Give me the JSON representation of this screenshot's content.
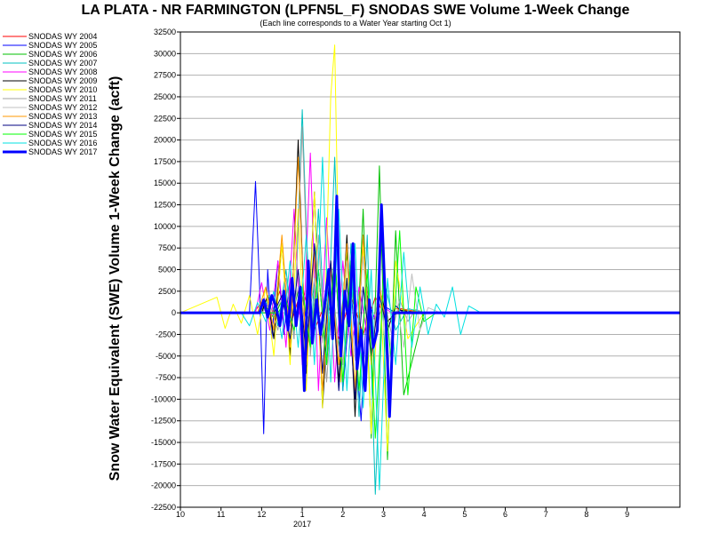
{
  "chart_data": {
    "type": "line",
    "title": "LA PLATA - NR FARMINGTON (LPFN5L_F) SNODAS SWE Volume 1-Week Change",
    "subtitle": "(Each line corresponds to a Water Year starting Oct 1)",
    "ylabel": "Snow Water Equivalent (SWE) Volume 1-Week Change (acft)",
    "xlabel": "",
    "x_year_label": "2017",
    "ylim": [
      -22500,
      32500
    ],
    "y_ticks": [
      32500,
      30000,
      27500,
      25000,
      22500,
      20000,
      17500,
      15000,
      12500,
      10000,
      7500,
      5000,
      2500,
      0,
      -2500,
      -5000,
      -7500,
      -10000,
      -12500,
      -15000,
      -17500,
      -20000,
      -22500
    ],
    "x_ticks": [
      "10",
      "11",
      "12",
      "1",
      "2",
      "3",
      "4",
      "5",
      "6",
      "7",
      "8",
      "9"
    ],
    "x_tick_months": [
      0,
      1,
      2,
      3,
      4,
      5,
      6,
      7,
      8,
      9,
      10,
      11
    ],
    "xlim_months": [
      0,
      12.3
    ],
    "grid": true,
    "legend_placement": "left",
    "series": [
      {
        "name": "SNODAS WY 2004",
        "color": "#ff0000",
        "width": 1,
        "x": [
          0,
          1.8,
          2.0,
          2.2,
          2.45,
          2.7,
          3.0,
          3.3,
          3.6,
          3.9,
          4.2,
          4.5,
          4.8,
          5.1,
          5.4,
          6,
          12.3
        ],
        "y": [
          0,
          0,
          1200,
          -800,
          2500,
          -1500,
          3000,
          -2000,
          1500,
          -3000,
          2000,
          -2500,
          1800,
          -1000,
          500,
          0,
          0
        ]
      },
      {
        "name": "SNODAS WY 2005",
        "color": "#0000ff",
        "width": 1,
        "x": [
          0,
          1.7,
          1.85,
          1.95,
          2.05,
          2.15,
          2.25,
          2.4,
          2.55,
          2.7,
          2.85,
          3.0,
          3.2,
          3.4,
          3.6,
          3.8,
          4.0,
          4.2,
          4.45,
          4.6,
          4.8,
          5.0,
          5.3,
          6,
          12.3
        ],
        "y": [
          0,
          0,
          15200,
          3000,
          -14000,
          5000,
          -3000,
          6000,
          -2500,
          4000,
          -1500,
          2000,
          -4000,
          5000,
          -6000,
          7000,
          -9000,
          3000,
          -12500,
          2000,
          -1000,
          800,
          0,
          0,
          0
        ]
      },
      {
        "name": "SNODAS WY 2006",
        "color": "#00c000",
        "width": 1,
        "x": [
          0,
          1.9,
          2.1,
          2.3,
          2.5,
          2.7,
          2.9,
          3.1,
          3.3,
          3.5,
          3.7,
          3.9,
          4.1,
          4.3,
          4.5,
          4.7,
          4.9,
          5.1,
          5.3,
          5.5,
          6,
          12.3
        ],
        "y": [
          0,
          0,
          800,
          -600,
          1500,
          -1200,
          2500,
          -2000,
          3500,
          -3000,
          5000,
          -4000,
          7000,
          -9000,
          12000,
          -14500,
          17000,
          -17000,
          9500,
          -9500,
          0,
          0
        ]
      },
      {
        "name": "SNODAS WY 2007",
        "color": "#00c0c0",
        "width": 1,
        "x": [
          0,
          2.0,
          2.2,
          2.4,
          2.6,
          2.8,
          3.0,
          3.2,
          3.4,
          3.6,
          3.8,
          4.0,
          4.2,
          4.4,
          4.6,
          4.8,
          5.0,
          5.3,
          5.6,
          6,
          12.3
        ],
        "y": [
          0,
          0,
          2000,
          -1500,
          5000,
          -3000,
          23500,
          -4000,
          12000,
          -6000,
          18000,
          -9000,
          8000,
          -12000,
          9000,
          -21000,
          4000,
          -2000,
          500,
          0,
          0
        ]
      },
      {
        "name": "SNODAS WY 2008",
        "color": "#ff00ff",
        "width": 1,
        "x": [
          0,
          1.85,
          2.0,
          2.2,
          2.4,
          2.6,
          2.8,
          3.0,
          3.2,
          3.4,
          3.6,
          3.8,
          4.0,
          4.2,
          4.4,
          4.6,
          4.9,
          5.2,
          6,
          12.3
        ],
        "y": [
          0,
          0,
          3500,
          -2000,
          6000,
          -4000,
          12000,
          -6000,
          18500,
          -9000,
          11000,
          -8000,
          6000,
          -5000,
          3000,
          -2500,
          1000,
          0,
          0,
          0
        ]
      },
      {
        "name": "SNODAS WY 2009",
        "color": "#000000",
        "width": 1,
        "x": [
          0,
          2.0,
          2.15,
          2.3,
          2.5,
          2.7,
          2.9,
          3.1,
          3.3,
          3.5,
          3.7,
          3.9,
          4.1,
          4.3,
          4.5,
          4.7,
          4.9,
          5.1,
          5.4,
          6,
          12.3
        ],
        "y": [
          0,
          0,
          2000,
          -3000,
          8000,
          -5000,
          20000,
          -7000,
          14000,
          -11000,
          6000,
          -8000,
          9000,
          -12000,
          9000,
          -5000,
          3000,
          -1000,
          300,
          0,
          0
        ]
      },
      {
        "name": "SNODAS WY 2010",
        "color": "#ffff00",
        "width": 1,
        "x": [
          0,
          0.9,
          1.1,
          1.3,
          1.5,
          1.7,
          1.9,
          2.1,
          2.3,
          2.5,
          2.7,
          2.9,
          3.1,
          3.3,
          3.5,
          3.7,
          3.8,
          3.95,
          4.1,
          4.3,
          4.5,
          4.7,
          4.9,
          5.1,
          5.3,
          5.6,
          6,
          12.3
        ],
        "y": [
          0,
          1800,
          -1800,
          1000,
          -1200,
          2000,
          -2500,
          3000,
          -5000,
          8000,
          -6000,
          12000,
          -9000,
          14000,
          -11000,
          25000,
          31000,
          -8000,
          6000,
          -9000,
          8000,
          -14000,
          5000,
          -16000,
          6000,
          -3000,
          0,
          0
        ]
      },
      {
        "name": "SNODAS WY 2011",
        "color": "#a0a0a0",
        "width": 1,
        "x": [
          0,
          2.0,
          2.2,
          2.4,
          2.6,
          2.8,
          3.0,
          3.2,
          3.4,
          3.6,
          3.8,
          4.0,
          4.2,
          4.4,
          4.6,
          4.8,
          5.0,
          5.2,
          5.4,
          5.6,
          5.8,
          6,
          12.3
        ],
        "y": [
          0,
          0,
          1000,
          -2000,
          4000,
          -3000,
          21500,
          -5000,
          9000,
          -8000,
          6000,
          -6000,
          4000,
          -5000,
          3000,
          -3000,
          2000,
          -2500,
          1500,
          -1000,
          400,
          0,
          0
        ]
      },
      {
        "name": "SNODAS WY 2012",
        "color": "#c0c0c0",
        "width": 1,
        "x": [
          0,
          2.3,
          2.5,
          2.7,
          2.9,
          3.1,
          3.3,
          3.5,
          3.7,
          3.9,
          4.1,
          4.3,
          4.5,
          4.7,
          4.9,
          5.1,
          5.3,
          5.5,
          5.7,
          5.9,
          6.1,
          6.4,
          12.3
        ],
        "y": [
          0,
          0,
          1500,
          -1500,
          3000,
          -2500,
          4000,
          -3500,
          5000,
          -4500,
          6000,
          -5500,
          6500,
          -6000,
          5000,
          -7000,
          2000,
          -4000,
          4500,
          -2000,
          600,
          0,
          0
        ]
      },
      {
        "name": "SNODAS WY 2013",
        "color": "#ff9900",
        "width": 1,
        "x": [
          0,
          1.9,
          2.1,
          2.3,
          2.5,
          2.7,
          2.9,
          3.1,
          3.3,
          3.5,
          3.7,
          3.9,
          4.1,
          4.3,
          4.5,
          4.7,
          4.9,
          5.1,
          5.3,
          6,
          12.3
        ],
        "y": [
          0,
          0,
          3000,
          -2000,
          9000,
          -4000,
          18000,
          -6000,
          7000,
          -9000,
          5000,
          -6000,
          8000,
          -9000,
          9000,
          -6000,
          3000,
          -2000,
          500,
          0,
          0
        ]
      },
      {
        "name": "SNODAS WY 2014",
        "color": "#000080",
        "width": 1,
        "x": [
          0,
          2.3,
          2.5,
          2.7,
          2.9,
          3.1,
          3.3,
          3.5,
          3.7,
          3.9,
          4.1,
          4.3,
          4.5,
          4.7,
          4.9,
          5.1,
          5.3,
          5.5,
          6,
          12.3
        ],
        "y": [
          0,
          0,
          2000,
          -3000,
          5000,
          -5000,
          8000,
          -7000,
          6000,
          -9000,
          4000,
          -10000,
          3000,
          -5000,
          2000,
          -2000,
          800,
          0,
          0,
          0
        ]
      },
      {
        "name": "SNODAS WY 2015",
        "color": "#00ff00",
        "width": 1,
        "x": [
          0,
          2.4,
          2.6,
          2.8,
          3.0,
          3.2,
          3.4,
          3.6,
          3.8,
          4.0,
          4.2,
          4.4,
          4.6,
          4.8,
          5.0,
          5.2,
          5.4,
          5.6,
          5.8,
          6.0,
          6.3,
          12.3
        ],
        "y": [
          0,
          0,
          1500,
          -2000,
          3000,
          -4000,
          5000,
          -6000,
          7000,
          -8000,
          6000,
          -9000,
          5000,
          -14500,
          4000,
          -6000,
          9500,
          -9500,
          3000,
          -1000,
          0,
          0
        ]
      },
      {
        "name": "SNODAS WY 2016",
        "color": "#00e0e0",
        "width": 1,
        "x": [
          0,
          1.5,
          1.7,
          1.9,
          2.1,
          2.3,
          2.5,
          2.7,
          2.9,
          3.1,
          3.3,
          3.5,
          3.7,
          3.9,
          4.1,
          4.3,
          4.5,
          4.7,
          4.9,
          5.1,
          5.3,
          5.5,
          5.7,
          5.9,
          6.1,
          6.3,
          6.5,
          6.7,
          6.9,
          7.1,
          7.4,
          12.3
        ],
        "y": [
          0,
          0,
          -1500,
          1200,
          -1000,
          2500,
          -3000,
          6000,
          -4000,
          9000,
          -6000,
          18000,
          -8000,
          12000,
          -9000,
          8000,
          -11000,
          5000,
          -20500,
          4000,
          -6000,
          7000,
          -4000,
          3000,
          -2500,
          1000,
          -500,
          3000,
          -2500,
          800,
          0,
          0
        ]
      },
      {
        "name": "SNODAS WY 2017",
        "color": "#0000ff",
        "width": 3,
        "x": [
          0,
          1.95,
          2.05,
          2.15,
          2.25,
          2.35,
          2.45,
          2.55,
          2.65,
          2.75,
          2.85,
          2.95,
          3.05,
          3.15,
          3.25,
          3.35,
          3.45,
          3.55,
          3.65,
          3.75,
          3.85,
          3.95,
          4.05,
          4.15,
          4.25,
          4.35,
          4.45,
          4.55,
          4.65,
          4.75,
          4.85,
          4.95,
          5.05,
          5.15,
          5.25,
          5.35,
          5.45,
          5.55,
          12.3
        ],
        "y": [
          0,
          0,
          1500,
          -500,
          2000,
          800,
          -1500,
          2500,
          -2000,
          4000,
          -1500,
          3000,
          -9000,
          6000,
          -3500,
          1500,
          -2500,
          800,
          5000,
          -3000,
          13500,
          -5000,
          2500,
          -1500,
          8000,
          -6500,
          -2000,
          -9000,
          1500,
          -4000,
          -2000,
          12500,
          1000,
          -12000,
          0,
          0,
          0,
          0,
          0
        ]
      }
    ]
  }
}
